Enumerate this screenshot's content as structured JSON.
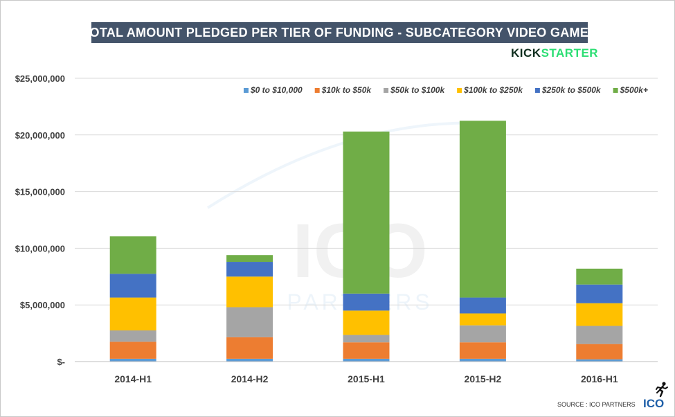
{
  "title": "TOTAL AMOUNT PLEDGED PER TIER OF FUNDING - SUBCATEGORY VIDEO GAMES",
  "brand": {
    "part1": "KICK",
    "part2": "STARTER"
  },
  "watermark": {
    "top": "ICO",
    "bottom": "PARTNERS"
  },
  "footer": {
    "source": "SOURCE : ICO PARTNERS",
    "logo": "ICO",
    "icon": "runner-icon"
  },
  "colors": {
    "tier_0": "#5b9bd5",
    "tier_1": "#ed7d31",
    "tier_2": "#a5a5a5",
    "tier_3": "#ffc000",
    "tier_4": "#4472c4",
    "tier_5": "#70ad47",
    "title_bg": "#44546a",
    "kick": "#0f2e1e",
    "starter": "#2bde73"
  },
  "chart_data": {
    "type": "bar",
    "stacked": true,
    "title": "TOTAL AMOUNT PLEDGED PER TIER OF FUNDING - SUBCATEGORY VIDEO GAMES",
    "xlabel": "",
    "ylabel": "",
    "ylim": [
      0,
      25000000
    ],
    "yticks": [
      0,
      5000000,
      10000000,
      15000000,
      20000000,
      25000000
    ],
    "ytick_labels": [
      "$-",
      "$5,000,000",
      "$10,000,000",
      "$15,000,000",
      "$20,000,000",
      "$25,000,000"
    ],
    "grid": true,
    "legend_position": "top-right",
    "categories": [
      "2014-H1",
      "2014-H2",
      "2015-H1",
      "2015-H2",
      "2016-H1"
    ],
    "series": [
      {
        "name": "$0 to $10,000",
        "values": [
          250000,
          250000,
          250000,
          250000,
          200000
        ]
      },
      {
        "name": "$10k to $50k",
        "values": [
          1500000,
          1900000,
          1450000,
          1450000,
          1350000
        ]
      },
      {
        "name": "$50k to $100k",
        "values": [
          1000000,
          2650000,
          650000,
          1500000,
          1600000
        ]
      },
      {
        "name": "$100k to $250k",
        "values": [
          2900000,
          2700000,
          2150000,
          1050000,
          2000000
        ]
      },
      {
        "name": "$250k to $500k",
        "values": [
          2100000,
          1300000,
          1500000,
          1400000,
          1650000
        ]
      },
      {
        "name": "$500k+",
        "values": [
          3300000,
          600000,
          14300000,
          15600000,
          1400000
        ]
      }
    ]
  }
}
